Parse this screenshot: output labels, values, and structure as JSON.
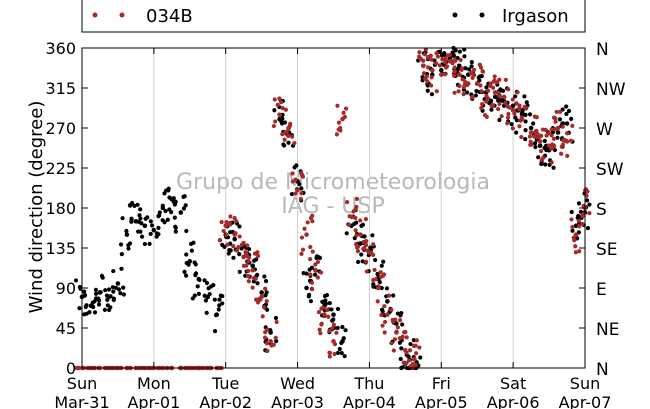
{
  "chart_data": {
    "type": "scatter",
    "ylabel": "Wind direction (degree)",
    "ylim": [
      0,
      360
    ],
    "yticks": [
      0,
      45,
      90,
      135,
      180,
      225,
      270,
      315,
      360
    ],
    "right_ticks": [
      {
        "value": 0,
        "label": "N"
      },
      {
        "value": 45,
        "label": "NE"
      },
      {
        "value": 90,
        "label": "E"
      },
      {
        "value": 135,
        "label": "SE"
      },
      {
        "value": 180,
        "label": "S"
      },
      {
        "value": 225,
        "label": "SW"
      },
      {
        "value": 270,
        "label": "W"
      },
      {
        "value": 315,
        "label": "NW"
      },
      {
        "value": 360,
        "label": "N"
      }
    ],
    "xlim": [
      "2013-03-31",
      "2013-04-07"
    ],
    "xticks": [
      {
        "value": "2013-03-31",
        "day": "Sun",
        "date": "Mar-31"
      },
      {
        "value": "2013-04-01",
        "day": "Mon",
        "date": "Apr-01"
      },
      {
        "value": "2013-04-02",
        "day": "Tue",
        "date": "Apr-02"
      },
      {
        "value": "2013-04-03",
        "day": "Wed",
        "date": "Apr-03"
      },
      {
        "value": "2013-04-04",
        "day": "Thu",
        "date": "Apr-04"
      },
      {
        "value": "2013-04-05",
        "day": "Fri",
        "date": "Apr-05"
      },
      {
        "value": "2013-04-06",
        "day": "Sat",
        "date": "Apr-06"
      },
      {
        "value": "2013-04-07",
        "day": "Sun",
        "date": "Apr-07"
      }
    ],
    "grid": "vertical",
    "legend_position": "top",
    "watermark": [
      "Grupo de Micrometeorologia",
      "IAG - USP"
    ],
    "series": [
      {
        "name": "034B",
        "color": "#a52a2a",
        "x_hours": [
          0,
          3,
          6,
          9,
          12,
          15,
          18,
          21,
          24,
          27,
          30,
          33,
          36,
          39,
          42,
          45,
          48,
          51,
          54,
          57,
          60,
          63,
          66,
          69,
          72,
          75,
          78,
          81,
          84,
          87,
          90,
          93,
          96,
          99,
          102,
          105,
          108,
          111,
          114,
          117,
          120,
          123,
          126,
          129,
          132,
          135,
          138,
          141,
          144,
          147,
          150,
          153,
          156,
          159,
          162,
          165,
          168
        ],
        "y": [
          0,
          0,
          0,
          0,
          0,
          0,
          0,
          0,
          0,
          0,
          0,
          0,
          0,
          0,
          0,
          0,
          160,
          150,
          125,
          110,
          80,
          30,
          285,
          270,
          200,
          150,
          110,
          60,
          30,
          280,
          170,
          150,
          130,
          90,
          60,
          40,
          20,
          10,
          340,
          335,
          330,
          345,
          330,
          320,
          320,
          300,
          310,
          305,
          290,
          280,
          265,
          255,
          250,
          270,
          255,
          150,
          180
        ]
      },
      {
        "name": "Irgason",
        "color": "#000000",
        "x_hours": [
          0,
          3,
          6,
          9,
          12,
          15,
          18,
          21,
          24,
          27,
          30,
          33,
          36,
          39,
          42,
          45,
          48,
          51,
          54,
          57,
          60,
          63,
          66,
          69,
          72,
          75,
          78,
          81,
          84,
          87,
          90,
          93,
          96,
          99,
          102,
          105,
          108,
          111,
          114,
          117,
          120,
          123,
          126,
          129,
          132,
          135,
          138,
          141,
          144,
          147,
          150,
          153,
          156,
          159,
          162,
          165,
          168
        ],
        "y": [
          80,
          70,
          85,
          80,
          95,
          150,
          165,
          160,
          155,
          180,
          190,
          175,
          120,
          100,
          80,
          60,
          150,
          145,
          125,
          115,
          85,
          40,
          280,
          270,
          210,
          90,
          110,
          70,
          60,
          30,
          160,
          140,
          130,
          100,
          75,
          50,
          5,
          10,
          340,
          330,
          335,
          350,
          340,
          330,
          320,
          310,
          305,
          300,
          295,
          285,
          270,
          250,
          245,
          265,
          275,
          160,
          175
        ]
      }
    ]
  }
}
